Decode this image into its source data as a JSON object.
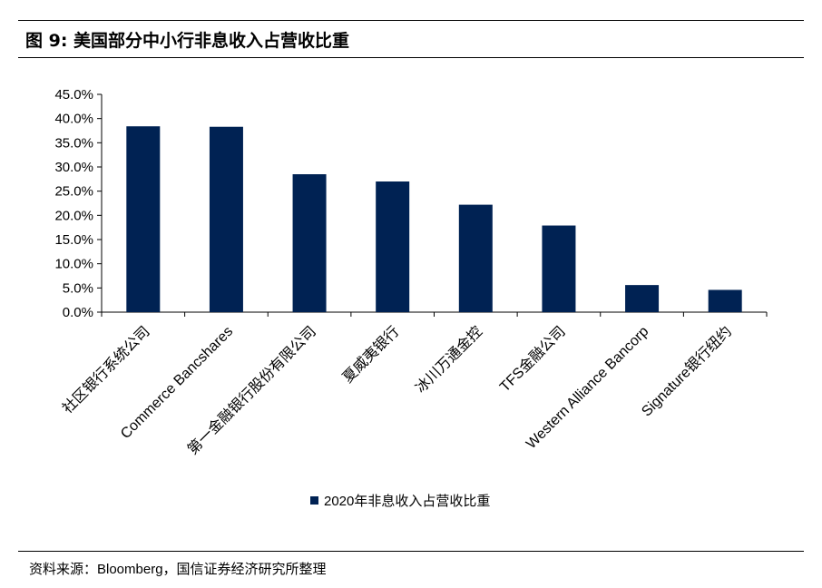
{
  "header": {
    "title": "图 9:  美国部分中小行非息收入占营收比重"
  },
  "chart_data": {
    "type": "bar",
    "categories": [
      "社区银行系统公司",
      "Commerce Bancshares",
      "第一金融银行股份有限公司",
      "夏威夷银行",
      "冰川万通金控",
      "TFS金融公司",
      "Western Alliance Bancorp",
      "Signature银行纽约"
    ],
    "series": [
      {
        "name": "2020年非息收入占营收比重",
        "values": [
          38.4,
          38.3,
          28.5,
          27.0,
          22.2,
          17.9,
          5.6,
          4.6
        ],
        "color": "#002253"
      }
    ],
    "ylim": [
      0,
      45
    ],
    "yticks": [
      "0.0%",
      "5.0%",
      "10.0%",
      "15.0%",
      "20.0%",
      "25.0%",
      "30.0%",
      "35.0%",
      "40.0%",
      "45.0%"
    ],
    "ytick_values": [
      0,
      5,
      10,
      15,
      20,
      25,
      30,
      35,
      40,
      45
    ],
    "grid": false,
    "legend_position": "bottom"
  },
  "footer": {
    "source": "资料来源：Bloomberg，国信证券经济研究所整理"
  }
}
